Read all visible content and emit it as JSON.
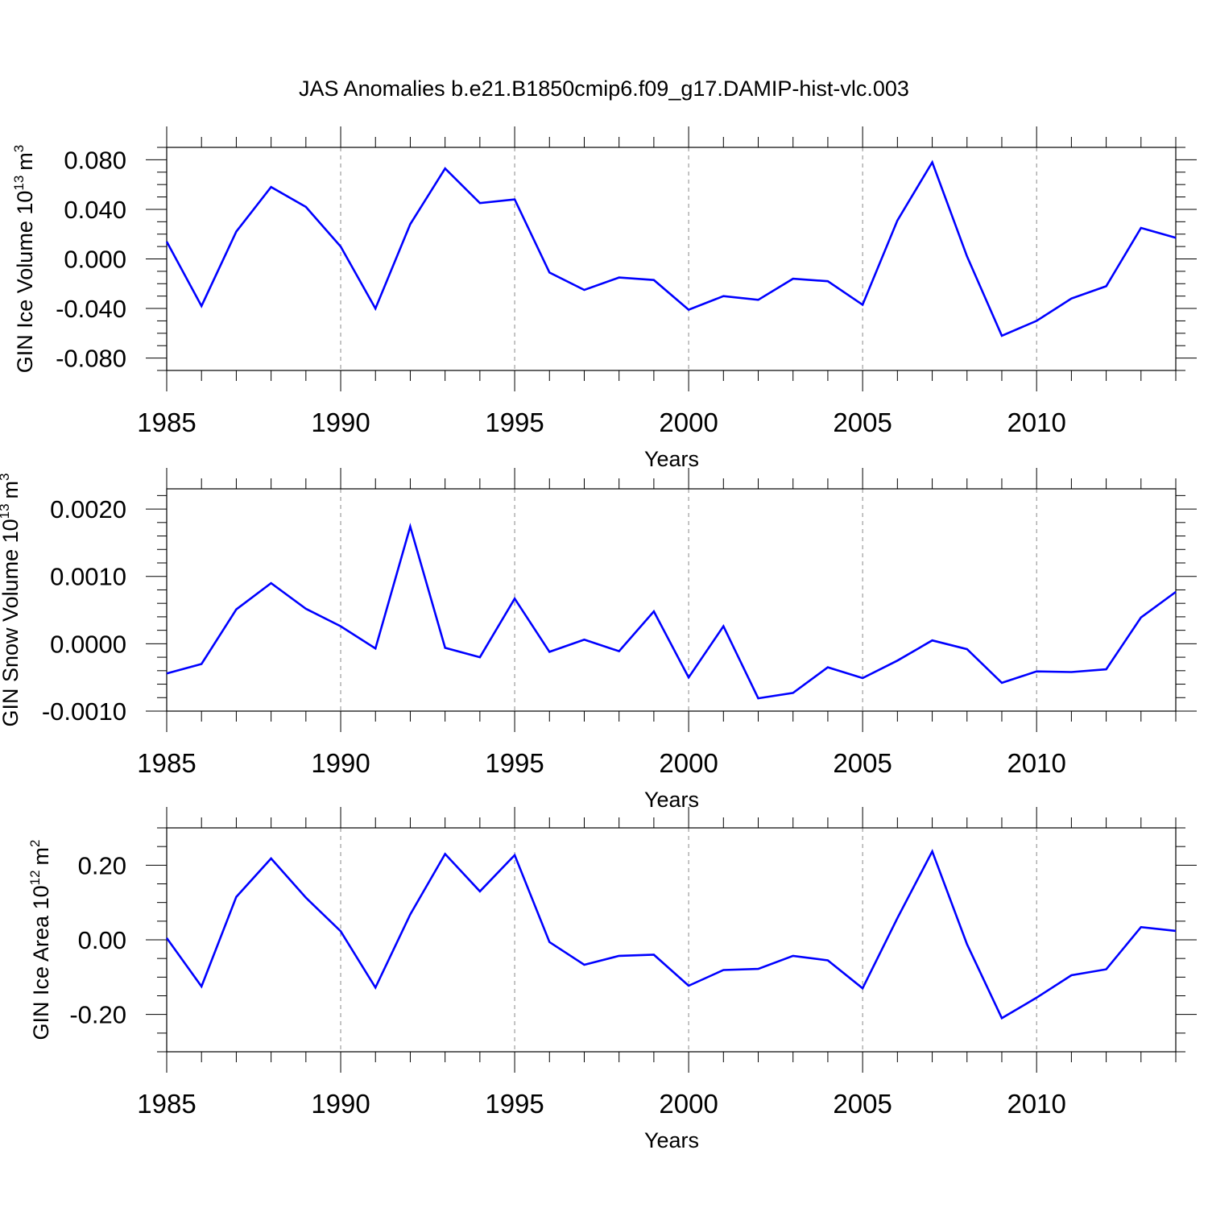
{
  "title": "JAS Anomalies b.e21.B1850cmip6.f09_g17.DAMIP-hist-vlc.003",
  "line_color": "#0000ff",
  "chart_data": [
    {
      "type": "line",
      "ylabel": "GIN Ice Volume 10",
      "ylabel_exp": "13",
      "ylabel_unit": "m",
      "ylabel_unit_exp": "3",
      "xlabel": "Years",
      "xlim": [
        1985,
        2014
      ],
      "ylim": [
        -0.09,
        0.09
      ],
      "yticks": [
        -0.08,
        -0.04,
        0.0,
        0.04,
        0.08
      ],
      "ytick_labels": [
        "-0.080",
        "-0.040",
        "0.000",
        "0.040",
        "0.080"
      ],
      "yminor_step": 0.01,
      "xticks": [
        1985,
        1990,
        1995,
        2000,
        2005,
        2010
      ],
      "xtick_labels": [
        "1985",
        "1990",
        "1995",
        "2000",
        "2005",
        "2010"
      ],
      "gridlines_x": [
        1990,
        1995,
        2000,
        2005,
        2010
      ],
      "x": [
        1985,
        1986,
        1987,
        1988,
        1989,
        1990,
        1991,
        1992,
        1993,
        1994,
        1995,
        1996,
        1997,
        1998,
        1999,
        2000,
        2001,
        2002,
        2003,
        2004,
        2005,
        2006,
        2007,
        2008,
        2009,
        2010,
        2011,
        2012,
        2013,
        2014
      ],
      "values": [
        0.014,
        -0.038,
        0.022,
        0.058,
        0.042,
        0.01,
        -0.04,
        0.028,
        0.073,
        0.045,
        0.048,
        -0.011,
        -0.025,
        -0.015,
        -0.017,
        -0.041,
        -0.03,
        -0.033,
        -0.016,
        -0.018,
        -0.037,
        0.031,
        0.078,
        0.002,
        -0.062,
        -0.05,
        -0.032,
        -0.022,
        0.025,
        0.017
      ]
    },
    {
      "type": "line",
      "ylabel": "GIN Snow Volume 10",
      "ylabel_exp": "13",
      "ylabel_unit": "m",
      "ylabel_unit_exp": "3",
      "xlabel": "Years",
      "xlim": [
        1985,
        2014
      ],
      "ylim": [
        -0.001,
        0.0023
      ],
      "yticks": [
        -0.001,
        0.0,
        0.001,
        0.002
      ],
      "ytick_labels": [
        "-0.0010",
        "0.0000",
        "0.0010",
        "0.0020"
      ],
      "yminor_step": 0.0002,
      "xticks": [
        1985,
        1990,
        1995,
        2000,
        2005,
        2010
      ],
      "xtick_labels": [
        "1985",
        "1990",
        "1995",
        "2000",
        "2005",
        "2010"
      ],
      "gridlines_x": [
        1990,
        1995,
        2000,
        2005,
        2010
      ],
      "x": [
        1985,
        1986,
        1987,
        1988,
        1989,
        1990,
        1991,
        1992,
        1993,
        1994,
        1995,
        1996,
        1997,
        1998,
        1999,
        2000,
        2001,
        2002,
        2003,
        2004,
        2005,
        2006,
        2007,
        2008,
        2009,
        2010,
        2011,
        2012,
        2013,
        2014
      ],
      "values": [
        -0.00044,
        -0.0003,
        0.00051,
        0.0009,
        0.00052,
        0.00026,
        -7e-05,
        0.00174,
        -6e-05,
        -0.0002,
        0.00067,
        -0.00012,
        6e-05,
        -0.00011,
        0.00048,
        -0.0005,
        0.00026,
        -0.00081,
        -0.00073,
        -0.00035,
        -0.00051,
        -0.00025,
        5e-05,
        -8e-05,
        -0.00058,
        -0.00041,
        -0.00042,
        -0.00038,
        0.00039,
        0.00077
      ]
    },
    {
      "type": "line",
      "ylabel": "GIN Ice Area 10",
      "ylabel_exp": "12",
      "ylabel_unit": "m",
      "ylabel_unit_exp": "2",
      "xlabel": "Years",
      "xlim": [
        1985,
        2014
      ],
      "ylim": [
        -0.3,
        0.3
      ],
      "yticks": [
        -0.2,
        0.0,
        0.2
      ],
      "ytick_labels": [
        "-0.20",
        "0.00",
        "0.20"
      ],
      "yminor_step": 0.05,
      "xticks": [
        1985,
        1990,
        1995,
        2000,
        2005,
        2010
      ],
      "xtick_labels": [
        "1985",
        "1990",
        "1995",
        "2000",
        "2005",
        "2010"
      ],
      "gridlines_x": [
        1990,
        1995,
        2000,
        2005,
        2010
      ],
      "x": [
        1985,
        1986,
        1987,
        1988,
        1989,
        1990,
        1991,
        1992,
        1993,
        1994,
        1995,
        1996,
        1997,
        1998,
        1999,
        2000,
        2001,
        2002,
        2003,
        2004,
        2005,
        2006,
        2007,
        2008,
        2009,
        2010,
        2011,
        2012,
        2013,
        2014
      ],
      "values": [
        0.005,
        -0.125,
        0.115,
        0.218,
        0.113,
        0.023,
        -0.128,
        0.068,
        0.23,
        0.13,
        0.227,
        -0.006,
        -0.067,
        -0.043,
        -0.04,
        -0.123,
        -0.081,
        -0.078,
        -0.043,
        -0.055,
        -0.13,
        0.058,
        0.237,
        -0.012,
        -0.21,
        -0.155,
        -0.095,
        -0.079,
        0.034,
        0.024
      ]
    }
  ]
}
